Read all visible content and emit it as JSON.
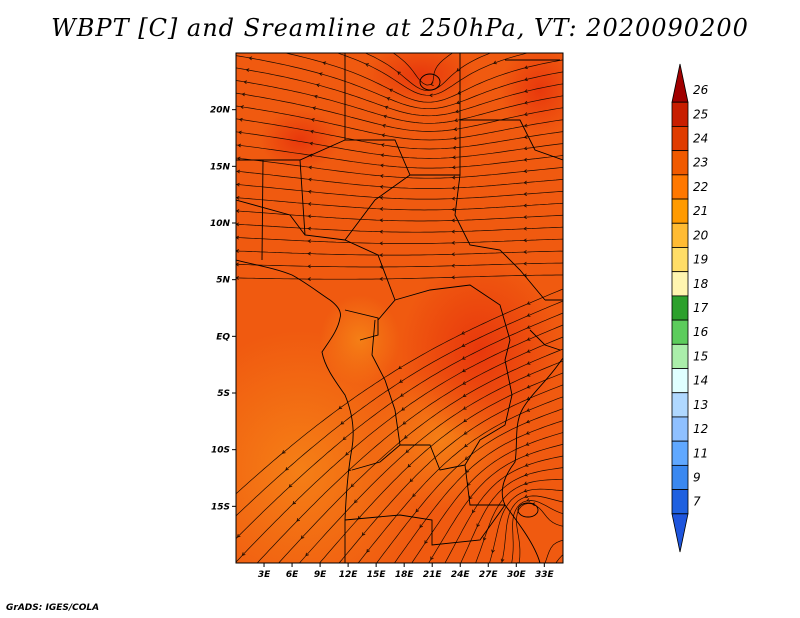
{
  "title": "WBPT [C] and Sreamline at 250hPa, VT: 2020090200",
  "credit": "GrADS: IGES/COLA",
  "map": {
    "lon_range": [
      0,
      35
    ],
    "lat_range": [
      -20,
      25
    ],
    "lat_ticks": [
      {
        "value": 20,
        "label": "20N"
      },
      {
        "value": 15,
        "label": "15N"
      },
      {
        "value": 10,
        "label": "10N"
      },
      {
        "value": 5,
        "label": "5N"
      },
      {
        "value": 0,
        "label": "EQ"
      },
      {
        "value": -5,
        "label": "5S"
      },
      {
        "value": -10,
        "label": "10S"
      },
      {
        "value": -15,
        "label": "15S"
      }
    ],
    "lon_ticks": [
      {
        "value": 3,
        "label": "3E"
      },
      {
        "value": 6,
        "label": "6E"
      },
      {
        "value": 9,
        "label": "9E"
      },
      {
        "value": 12,
        "label": "12E"
      },
      {
        "value": 15,
        "label": "15E"
      },
      {
        "value": 18,
        "label": "18E"
      },
      {
        "value": 21,
        "label": "21E"
      },
      {
        "value": 24,
        "label": "24E"
      },
      {
        "value": 27,
        "label": "27E"
      },
      {
        "value": 30,
        "label": "30E"
      },
      {
        "value": 33,
        "label": "33E"
      }
    ]
  },
  "colorbar": {
    "levels": [
      "26",
      "25",
      "24",
      "23",
      "22",
      "21",
      "20",
      "19",
      "18",
      "17",
      "16",
      "15",
      "14",
      "13",
      "12",
      "11",
      "9",
      "7"
    ],
    "colors": [
      "#a00000",
      "#c81e00",
      "#e03c00",
      "#f05a00",
      "#ff7800",
      "#ff9a00",
      "#ffbb33",
      "#ffdd66",
      "#fff5b0",
      "#2ca02c",
      "#5ccc5c",
      "#aaeeaa",
      "#e0ffff",
      "#b0d8ff",
      "#8fc0ff",
      "#60a8ff",
      "#3a88f0",
      "#1e60e0",
      "#1e55dd"
    ]
  }
}
